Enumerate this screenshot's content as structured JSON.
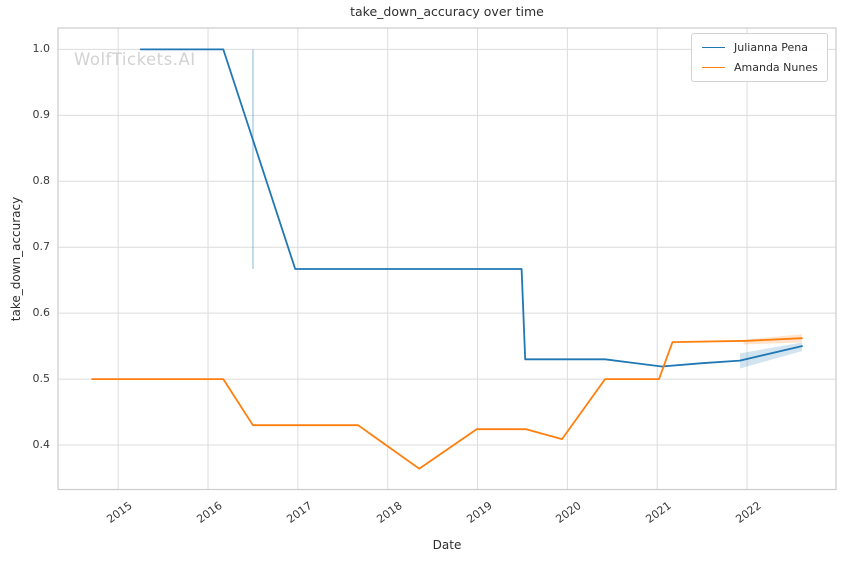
{
  "chart_data": {
    "type": "line",
    "title": "take_down_accuracy over time",
    "xlabel": "Date",
    "ylabel": "take_down_accuracy",
    "watermark": "WolfTickets.AI",
    "legend_position": "upper right",
    "grid": true,
    "xlim": [
      2014.33,
      2022.99
    ],
    "ylim": [
      0.3325,
      1.0325
    ],
    "x_ticks": [
      "2015",
      "2016",
      "2017",
      "2018",
      "2019",
      "2020",
      "2021",
      "2022"
    ],
    "y_ticks": [
      "1.0",
      "0.9",
      "0.8",
      "0.7",
      "0.6",
      "0.5",
      "0.4"
    ],
    "colors": {
      "series_blue": "#1f77b4",
      "series_orange": "#ff7f0e",
      "grid": "#dcdcdc",
      "spine": "#cccccc",
      "text": "#2e2e2e",
      "tick_text": "#3a3a3a",
      "watermark": "#d2d2d2"
    },
    "series": [
      {
        "name": "Julianna Pena",
        "color": "#1f77b4",
        "x": [
          2015.25,
          2016.17,
          2016.97,
          2019.49,
          2019.53,
          2020.42,
          2021.05,
          2021.5,
          2021.92,
          2022.61
        ],
        "y": [
          1.0,
          1.0,
          0.667,
          0.667,
          0.53,
          0.53,
          0.519,
          0.524,
          0.528,
          0.55
        ]
      },
      {
        "name": "Amanda Nunes",
        "color": "#ff7f0e",
        "x": [
          2014.71,
          2016.17,
          2016.5,
          2017.67,
          2018.35,
          2018.99,
          2019.54,
          2019.94,
          2020.42,
          2021.02,
          2021.17,
          2022.0,
          2022.61
        ],
        "y": [
          0.5,
          0.5,
          0.43,
          0.43,
          0.364,
          0.424,
          0.424,
          0.409,
          0.5,
          0.5,
          0.556,
          0.558,
          0.562
        ]
      }
    ],
    "ci_bands": [
      {
        "series": "Julianna Pena",
        "color": "#1f77b4",
        "alpha": 0.3,
        "points": [
          [
            2016.49,
            1.0
          ],
          [
            2016.51,
            1.0
          ],
          [
            2016.51,
            0.667
          ],
          [
            2016.49,
            0.667
          ]
        ]
      },
      {
        "series": "Julianna Pena",
        "color": "#1f77b4",
        "alpha": 0.2,
        "points": [
          [
            2021.92,
            0.539
          ],
          [
            2022.61,
            0.5555
          ],
          [
            2022.61,
            0.5425
          ],
          [
            2021.92,
            0.516
          ]
        ]
      },
      {
        "series": "Amanda Nunes",
        "color": "#ff7f0e",
        "alpha": 0.2,
        "points": [
          [
            2021.96,
            0.5595
          ],
          [
            2022.61,
            0.568
          ],
          [
            2022.61,
            0.5555
          ],
          [
            2021.96,
            0.5525
          ]
        ]
      }
    ]
  }
}
